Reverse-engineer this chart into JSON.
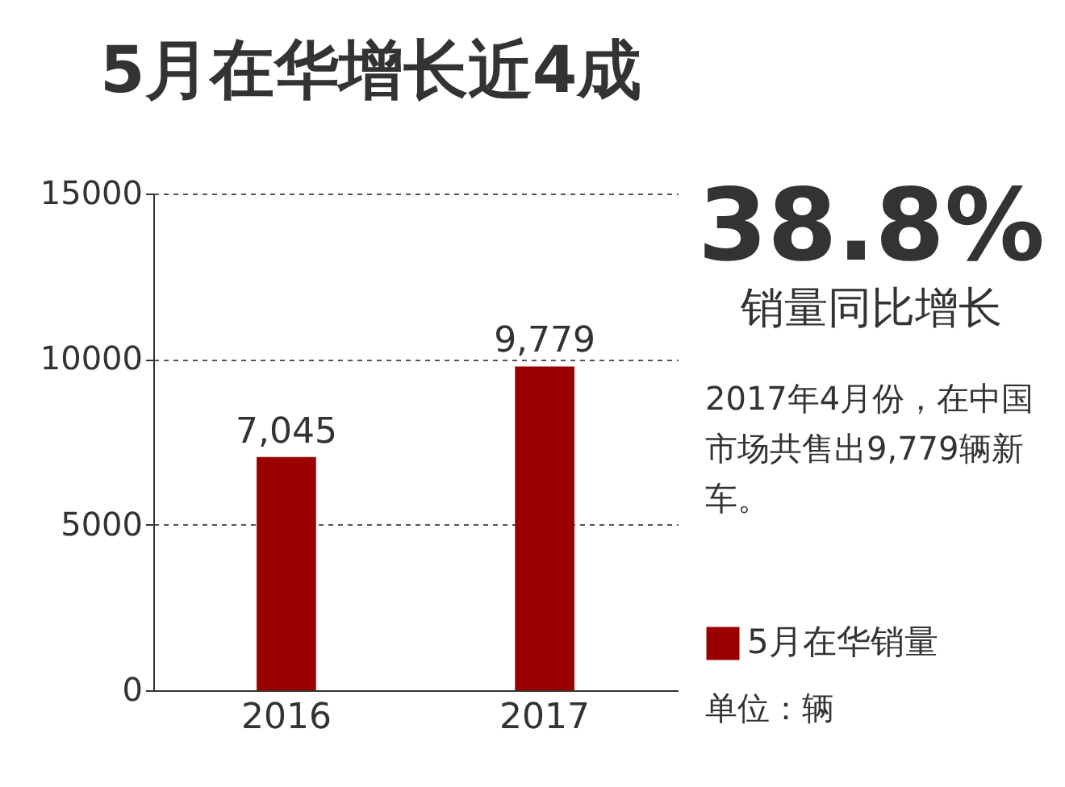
{
  "chart_data": {
    "type": "bar",
    "title": "5月在华增长近4成",
    "categories": [
      "2016",
      "2017"
    ],
    "series": [
      {
        "name": "5月在华销量",
        "color": "#9b0000",
        "values": [
          7045,
          9779
        ],
        "value_labels": [
          "7,045",
          "9,779"
        ]
      }
    ],
    "ylim": [
      0,
      15000
    ],
    "yticks": [
      0,
      5000,
      10000,
      15000
    ],
    "grid": "y",
    "legend": "right",
    "annotations": [
      "38.8%",
      "销量同比增长",
      "2017年4月份，在中国市场共售出9,779辆新车。",
      "单位：辆"
    ]
  }
}
